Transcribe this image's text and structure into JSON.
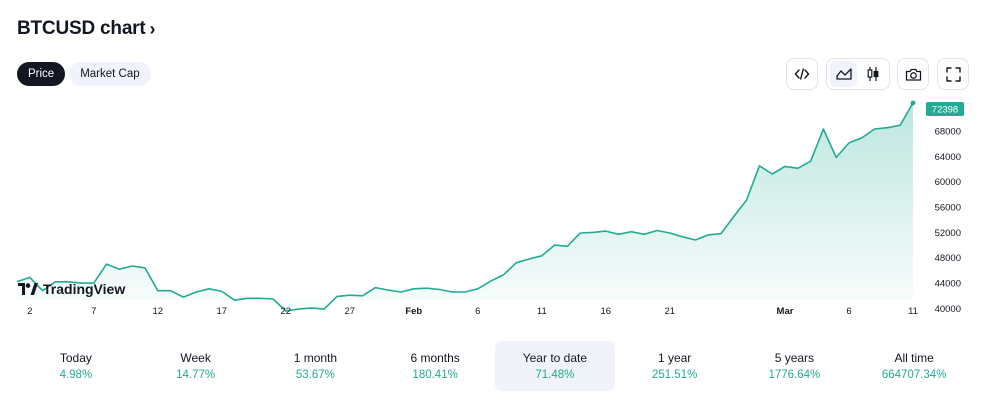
{
  "header": {
    "title": "BTCUSD chart",
    "chevron": "›"
  },
  "toggle": {
    "price_label": "Price",
    "market_cap_label": "Market Cap",
    "selected": "Price"
  },
  "toolbar": {
    "embed_icon": "code-icon",
    "area_icon": "area-chart-icon",
    "candles_icon": "candles-icon",
    "snapshot_icon": "camera-icon",
    "fullscreen_icon": "fullscreen-icon",
    "selected_chart_style": "area"
  },
  "logo": {
    "text": "TradingView"
  },
  "colors": {
    "line": "#22ab94",
    "fill_top": "#22ab94",
    "label_bg": "#22ab94",
    "positive": "#22ab94",
    "text": "#131722"
  },
  "chart_data": {
    "type": "area",
    "symbol": "BTCUSD",
    "current_price_label": "72398",
    "ylim": [
      38500,
      73500
    ],
    "y_ticks": [
      40000,
      44000,
      48000,
      52000,
      56000,
      60000,
      64000,
      68000
    ],
    "y_tick_labels": [
      "40000",
      "44000",
      "48000",
      "52000",
      "56000",
      "60000",
      "64000",
      "68000"
    ],
    "x_tick_labels": [
      "2",
      "7",
      "12",
      "17",
      "22",
      "27",
      "Feb",
      "6",
      "11",
      "16",
      "21",
      "Mar",
      "6",
      "11"
    ],
    "x_tick_dates": [
      "2024-01-02",
      "2024-01-07",
      "2024-01-12",
      "2024-01-17",
      "2024-01-22",
      "2024-01-27",
      "2024-02-01",
      "2024-02-06",
      "2024-02-11",
      "2024-02-16",
      "2024-02-21",
      "2024-03-01",
      "2024-03-06",
      "2024-03-11"
    ],
    "grid": false,
    "series": [
      {
        "dates": [
          "2024-01-01",
          "2024-01-02",
          "2024-01-03",
          "2024-01-04",
          "2024-01-05",
          "2024-01-06",
          "2024-01-07",
          "2024-01-08",
          "2024-01-09",
          "2024-01-10",
          "2024-01-11",
          "2024-01-12",
          "2024-01-13",
          "2024-01-14",
          "2024-01-15",
          "2024-01-16",
          "2024-01-17",
          "2024-01-18",
          "2024-01-19",
          "2024-01-20",
          "2024-01-21",
          "2024-01-22",
          "2024-01-23",
          "2024-01-24",
          "2024-01-25",
          "2024-01-26",
          "2024-01-27",
          "2024-01-28",
          "2024-01-29",
          "2024-01-30",
          "2024-01-31",
          "2024-02-01",
          "2024-02-02",
          "2024-02-03",
          "2024-02-04",
          "2024-02-05",
          "2024-02-06",
          "2024-02-07",
          "2024-02-08",
          "2024-02-09",
          "2024-02-10",
          "2024-02-11",
          "2024-02-12",
          "2024-02-13",
          "2024-02-14",
          "2024-02-15",
          "2024-02-16",
          "2024-02-17",
          "2024-02-18",
          "2024-02-19",
          "2024-02-20",
          "2024-02-21",
          "2024-02-22",
          "2024-02-23",
          "2024-02-24",
          "2024-02-25",
          "2024-02-26",
          "2024-02-27",
          "2024-02-28",
          "2024-02-29",
          "2024-03-01",
          "2024-03-02",
          "2024-03-03",
          "2024-03-04",
          "2024-03-05",
          "2024-03-06",
          "2024-03-07",
          "2024-03-08",
          "2024-03-09",
          "2024-03-10",
          "2024-03-11"
        ],
        "values": [
          44200,
          44900,
          42800,
          44200,
          44200,
          44000,
          44000,
          47000,
          46200,
          46700,
          46400,
          42800,
          42800,
          41800,
          42600,
          43100,
          42700,
          41300,
          41600,
          41600,
          41500,
          39600,
          39900,
          40100,
          39900,
          41900,
          42100,
          42000,
          43300,
          42900,
          42600,
          43100,
          43200,
          43000,
          42600,
          42600,
          43100,
          44300,
          45300,
          47200,
          47800,
          48300,
          50000,
          49800,
          51900,
          52000,
          52200,
          51700,
          52100,
          51700,
          52300,
          51900,
          51300,
          50800,
          51600,
          51800,
          54500,
          57100,
          62500,
          61200,
          62400,
          62100,
          63200,
          68300,
          63800,
          66100,
          66900,
          68300,
          68500,
          68900,
          72398
        ]
      }
    ]
  },
  "performance": [
    {
      "label": "Today",
      "value": "4.98%"
    },
    {
      "label": "Week",
      "value": "14.77%"
    },
    {
      "label": "1 month",
      "value": "53.67%"
    },
    {
      "label": "6 months",
      "value": "180.41%"
    },
    {
      "label": "Year to date",
      "value": "71.48%"
    },
    {
      "label": "1 year",
      "value": "251.51%"
    },
    {
      "label": "5 years",
      "value": "1776.64%"
    },
    {
      "label": "All time",
      "value": "664707.34%"
    }
  ],
  "performance_selected": "Year to date"
}
